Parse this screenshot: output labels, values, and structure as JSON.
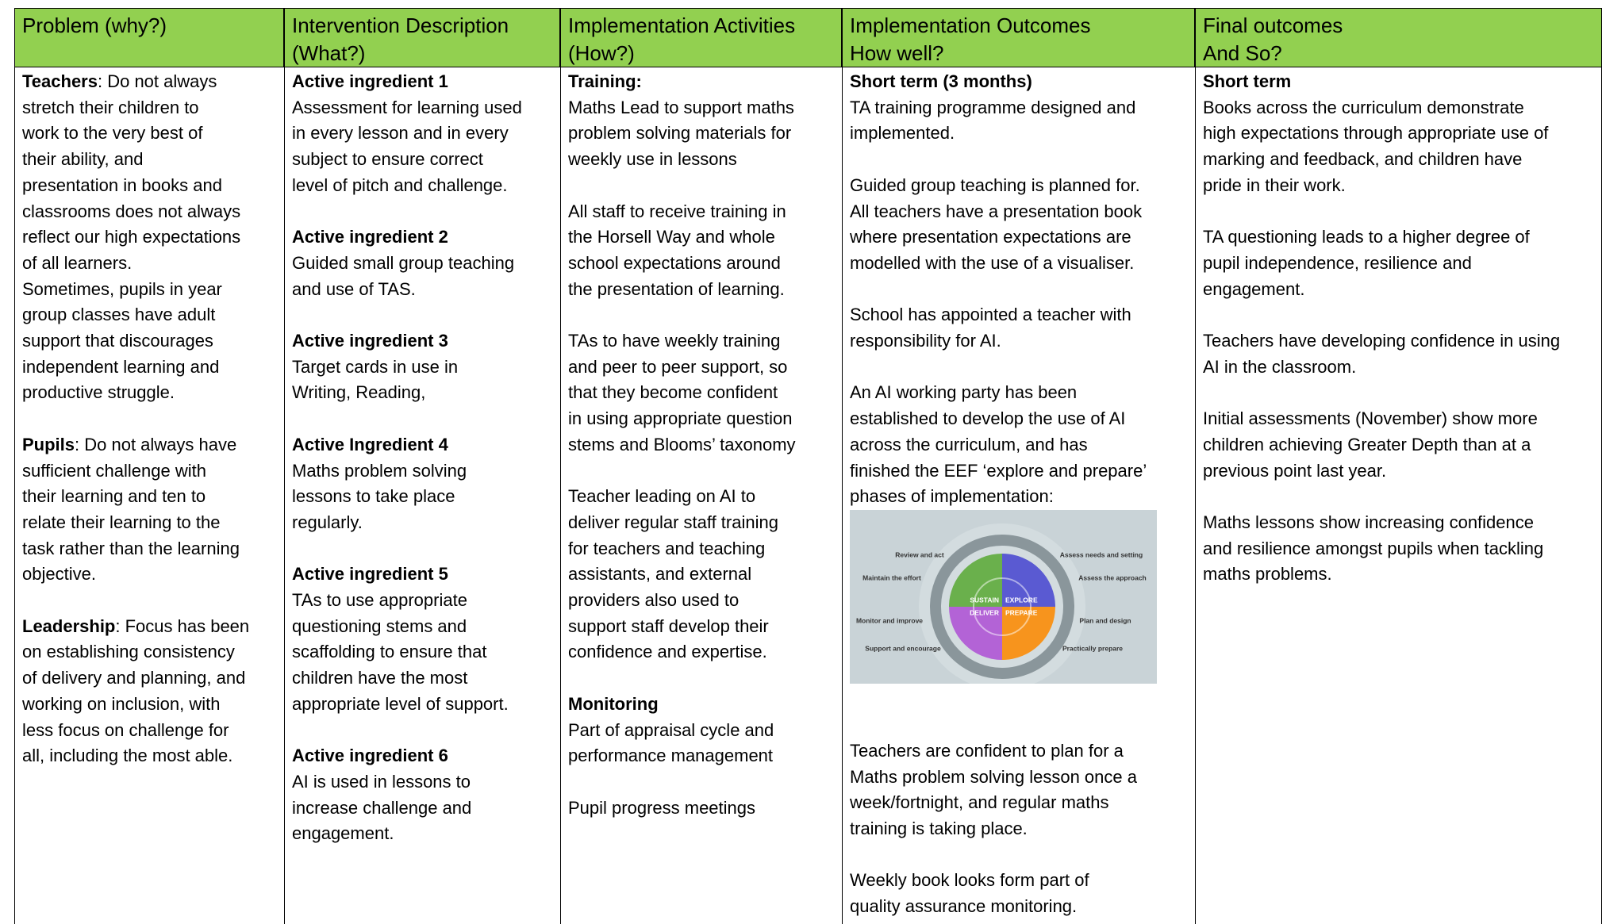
{
  "table": {
    "headers": [
      [
        "Problem (why?)"
      ],
      [
        "Intervention Description",
        "(What?)"
      ],
      [
        "Implementation Activities",
        "(How?)"
      ],
      [
        "Implementation Outcomes",
        "How well?"
      ],
      [
        "Final outcomes",
        "And So?"
      ]
    ],
    "columns": [
      {
        "blocks": [
          {
            "lead": "Teachers",
            "lines": [
              ": Do not always",
              "stretch their children to",
              "work to the very best of",
              "their ability, and",
              "presentation in books and",
              "classrooms does not always",
              "reflect our high expectations",
              "of all learners.",
              "Sometimes, pupils in year",
              "group classes have adult",
              "support that discourages",
              "independent learning and",
              "productive struggle."
            ]
          },
          {
            "lead": "Pupils",
            "lines": [
              ": Do not always have",
              "sufficient challenge with",
              "their learning and ten to",
              "relate their learning to the",
              "task rather than the learning",
              "objective."
            ]
          },
          {
            "lead": "Leadership",
            "lines": [
              ": Focus has been",
              "on establishing consistency",
              "of delivery and planning, and",
              "working on inclusion, with",
              "less focus on challenge for",
              "all, including the most able."
            ]
          }
        ]
      },
      {
        "blocks": [
          {
            "heading": "Active ingredient 1",
            "lines": [
              "Assessment for learning used",
              "in every lesson and in every",
              "subject to ensure correct",
              "level of pitch and challenge."
            ]
          },
          {
            "heading": "Active ingredient 2",
            "lines": [
              "Guided small group teaching",
              "and use of TAS."
            ]
          },
          {
            "heading": "Active ingredient 3",
            "lines": [
              "Target cards in use in",
              "Writing, Reading,"
            ]
          },
          {
            "heading": "Active Ingredient 4",
            "lines": [
              "Maths problem solving",
              "lessons to take place",
              "regularly."
            ]
          },
          {
            "heading": "Active ingredient 5",
            "lines": [
              "TAs to use appropriate",
              "questioning stems and",
              "scaffolding to ensure that",
              "children have the most",
              "appropriate level of support."
            ]
          },
          {
            "heading": "Active ingredient 6",
            "lines": [
              "AI is used in lessons to",
              "increase challenge and",
              "engagement."
            ]
          }
        ]
      },
      {
        "blocks": [
          {
            "heading": "Training:",
            "lines": [
              "Maths Lead to support maths",
              "problem solving materials for",
              "weekly use in lessons"
            ]
          },
          {
            "lines": [
              "All staff to receive training in",
              "the Horsell Way and whole",
              "school expectations around",
              "the presentation of learning."
            ]
          },
          {
            "lines": [
              "TAs to have weekly training",
              "and peer to peer support, so",
              "that they become confident",
              "in using appropriate question",
              "stems and Blooms’ taxonomy"
            ]
          },
          {
            "lines": [
              "Teacher leading on AI to",
              "deliver regular staff training",
              "for teachers and teaching",
              "assistants, and external",
              "providers also used to",
              "support staff develop their",
              "confidence and expertise."
            ]
          },
          {
            "heading": "Monitoring",
            "lines": [
              "Part of appraisal cycle and",
              "performance management"
            ]
          },
          {
            "lines": [
              "Pupil progress meetings"
            ]
          }
        ]
      },
      {
        "blocks": [
          {
            "heading": "Short term (3 months)",
            "lines": [
              "TA training programme designed and",
              "implemented."
            ]
          },
          {
            "lines": [
              "Guided group teaching is planned for.",
              "All teachers have a presentation book",
              "where presentation expectations are",
              "modelled with the use of a visualiser."
            ]
          },
          {
            "lines": [
              "School has appointed a teacher with",
              "responsibility for AI."
            ]
          },
          {
            "lines": [
              "An AI working party has been",
              "established to develop the use of AI",
              "across the curriculum, and has",
              "finished the EEF ‘explore and prepare’",
              "phases of implementation:"
            ]
          },
          {
            "figure": {
              "left_labels": [
                "Review and act",
                "Maintain the effort",
                "Monitor and improve",
                "Support and encourage"
              ],
              "right_labels": [
                "Assess needs and setting",
                "Assess the approach",
                "Plan and design",
                "Practically prepare"
              ],
              "quadrants": [
                "SUSTAIN",
                "EXPLORE",
                "DELIVER",
                "PREPARE"
              ]
            }
          },
          {
            "lines": [
              "Teachers are confident to plan for a",
              "Maths problem solving lesson once a",
              "week/fortnight, and regular maths",
              "training is taking place."
            ]
          },
          {
            "lines": [
              "Weekly book looks form part of",
              "quality assurance monitoring."
            ]
          }
        ]
      },
      {
        "blocks": [
          {
            "heading": "Short term",
            "lines": [
              "Books across the curriculum demonstrate",
              "high expectations through appropriate use of",
              "marking and feedback, and children have",
              "pride in their work."
            ]
          },
          {
            "lines": [
              "TA questioning leads to a higher degree of",
              "pupil independence, resilience and",
              "engagement."
            ]
          },
          {
            "lines": [
              "Teachers have developing confidence in using",
              "AI in the classroom."
            ]
          },
          {
            "lines": [
              "Initial assessments (November) show more",
              "children achieving Greater Depth than at a",
              "previous point last year."
            ]
          },
          {
            "lines": [
              "Maths lessons show increasing confidence",
              "and resilience amongst pupils when tackling",
              "maths problems."
            ]
          }
        ]
      }
    ]
  }
}
